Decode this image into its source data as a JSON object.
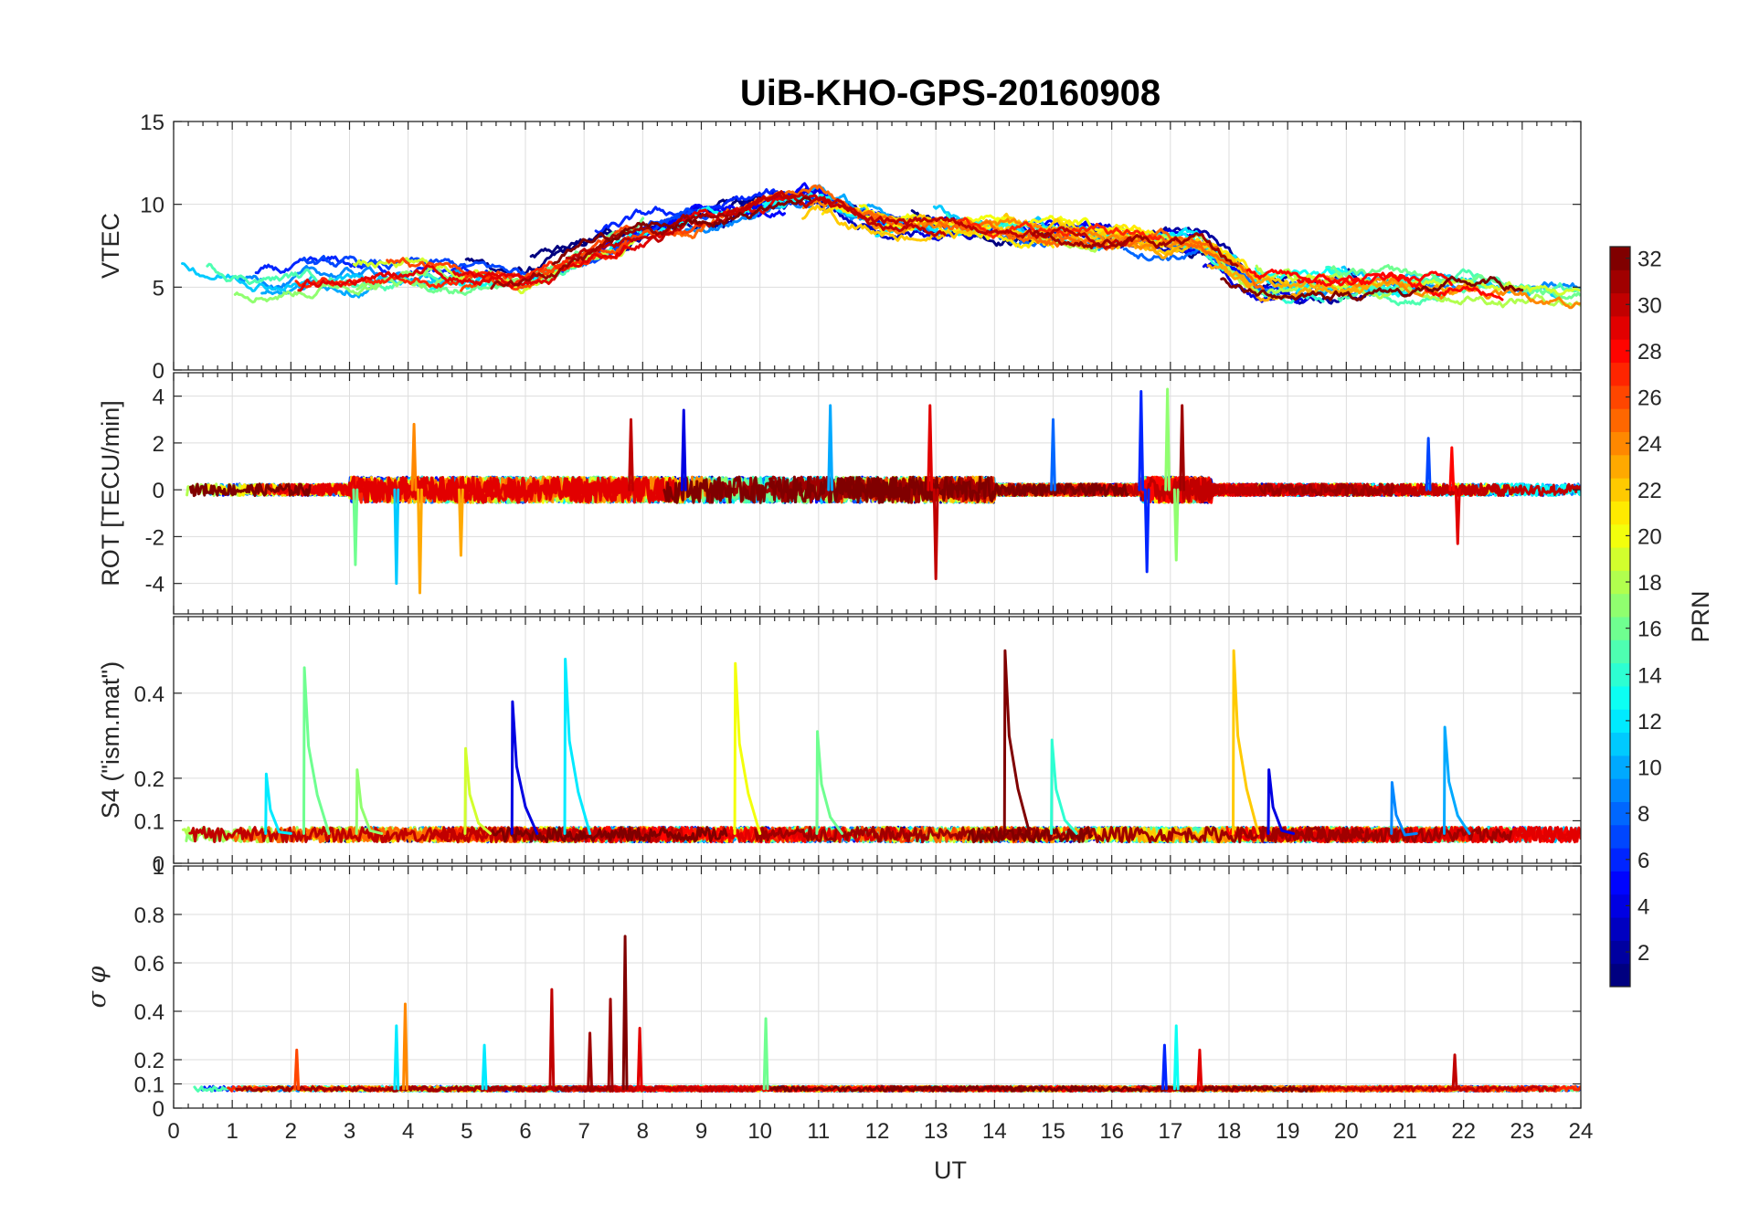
{
  "chart_data": {
    "type": "line",
    "title": "UiB-KHO-GPS-20160908",
    "xlabel": "UT",
    "xlim": [
      0,
      24
    ],
    "xticks": [
      "0",
      "1",
      "2",
      "3",
      "4",
      "5",
      "6",
      "7",
      "8",
      "9",
      "10",
      "11",
      "12",
      "13",
      "14",
      "15",
      "16",
      "17",
      "18",
      "19",
      "20",
      "21",
      "22",
      "23",
      "24"
    ],
    "colorbar": {
      "label": "PRN",
      "colormap": "jet",
      "range": [
        1,
        32
      ],
      "ticks": [
        "2",
        "4",
        "6",
        "8",
        "10",
        "12",
        "14",
        "16",
        "18",
        "20",
        "22",
        "24",
        "26",
        "28",
        "30",
        "32"
      ]
    },
    "panels": [
      {
        "ylabel": "VTEC",
        "ylim": [
          0,
          15
        ],
        "yticks": [
          "0",
          "5",
          "10",
          "15"
        ],
        "mode": "tec",
        "events": [],
        "envelope_hours": [
          0,
          2,
          4,
          6,
          8,
          10,
          11,
          12,
          14,
          16,
          17.5,
          18.5,
          20,
          22,
          24
        ],
        "envelope_values": [
          5.5,
          5.6,
          5.8,
          5.5,
          8.5,
          10,
          10.5,
          9,
          8.5,
          8,
          7.5,
          5,
          5,
          5,
          4.5
        ]
      },
      {
        "ylabel": "ROT [TECU/min]",
        "ylim": [
          -5.3,
          5
        ],
        "yticks": [
          "-4",
          "-2",
          "0",
          "2",
          "4"
        ],
        "mode": "rot",
        "events": [
          {
            "t": 3.1,
            "v": -3.2,
            "prn": 16
          },
          {
            "t": 3.8,
            "v": -4.0,
            "prn": 11
          },
          {
            "t": 4.2,
            "v": -4.4,
            "prn": 23
          },
          {
            "t": 4.1,
            "v": 2.8,
            "prn": 24
          },
          {
            "t": 4.9,
            "v": -2.8,
            "prn": 23
          },
          {
            "t": 7.8,
            "v": 3.0,
            "prn": 30
          },
          {
            "t": 8.7,
            "v": 3.4,
            "prn": 4
          },
          {
            "t": 11.2,
            "v": 3.6,
            "prn": 10
          },
          {
            "t": 12.9,
            "v": 3.6,
            "prn": 29
          },
          {
            "t": 13.0,
            "v": -3.8,
            "prn": 30
          },
          {
            "t": 15.0,
            "v": 3.0,
            "prn": 8
          },
          {
            "t": 16.5,
            "v": 4.2,
            "prn": 6
          },
          {
            "t": 16.6,
            "v": -3.5,
            "prn": 6
          },
          {
            "t": 16.95,
            "v": 4.3,
            "prn": 17
          },
          {
            "t": 17.1,
            "v": -3.0,
            "prn": 17
          },
          {
            "t": 17.2,
            "v": 3.6,
            "prn": 31
          },
          {
            "t": 21.4,
            "v": 2.2,
            "prn": 7
          },
          {
            "t": 21.8,
            "v": 1.8,
            "prn": 28
          },
          {
            "t": 21.9,
            "v": -2.3,
            "prn": 29
          }
        ]
      },
      {
        "ylabel": "S4 (\"ism.mat\")",
        "ylim": [
          0,
          0.58
        ],
        "yticks": [
          "0",
          "0.1",
          "0.2",
          "0.4"
        ],
        "mode": "s4",
        "events": [
          {
            "t": 2.25,
            "v": 0.46,
            "prn": 16
          },
          {
            "t": 3.15,
            "v": 0.22,
            "prn": 17
          },
          {
            "t": 1.6,
            "v": 0.21,
            "prn": 12
          },
          {
            "t": 5.0,
            "v": 0.27,
            "prn": 19
          },
          {
            "t": 5.8,
            "v": 0.38,
            "prn": 4
          },
          {
            "t": 6.7,
            "v": 0.48,
            "prn": 12
          },
          {
            "t": 9.6,
            "v": 0.47,
            "prn": 20
          },
          {
            "t": 11.0,
            "v": 0.31,
            "prn": 16
          },
          {
            "t": 14.2,
            "v": 0.5,
            "prn": 32
          },
          {
            "t": 15.0,
            "v": 0.29,
            "prn": 14
          },
          {
            "t": 18.1,
            "v": 0.5,
            "prn": 22
          },
          {
            "t": 18.7,
            "v": 0.22,
            "prn": 4
          },
          {
            "t": 21.7,
            "v": 0.32,
            "prn": 10
          },
          {
            "t": 20.8,
            "v": 0.19,
            "prn": 9
          }
        ]
      },
      {
        "ylabel": "σ φ",
        "ylim": [
          0,
          1
        ],
        "yticks": [
          "0",
          "0.1",
          "0.2",
          "0.4",
          "0.6",
          "0.8",
          "1"
        ],
        "mode": "phi",
        "events": [
          {
            "t": 2.1,
            "v": 0.24,
            "prn": 26
          },
          {
            "t": 3.8,
            "v": 0.34,
            "prn": 12
          },
          {
            "t": 3.95,
            "v": 0.43,
            "prn": 24
          },
          {
            "t": 5.3,
            "v": 0.26,
            "prn": 12
          },
          {
            "t": 6.45,
            "v": 0.49,
            "prn": 30
          },
          {
            "t": 7.1,
            "v": 0.31,
            "prn": 31
          },
          {
            "t": 7.45,
            "v": 0.45,
            "prn": 31
          },
          {
            "t": 7.7,
            "v": 0.71,
            "prn": 32
          },
          {
            "t": 7.95,
            "v": 0.33,
            "prn": 29
          },
          {
            "t": 10.1,
            "v": 0.37,
            "prn": 16
          },
          {
            "t": 17.1,
            "v": 0.34,
            "prn": 13
          },
          {
            "t": 16.9,
            "v": 0.26,
            "prn": 6
          },
          {
            "t": 17.5,
            "v": 0.24,
            "prn": 29
          },
          {
            "t": 21.85,
            "v": 0.22,
            "prn": 30
          }
        ]
      }
    ]
  }
}
